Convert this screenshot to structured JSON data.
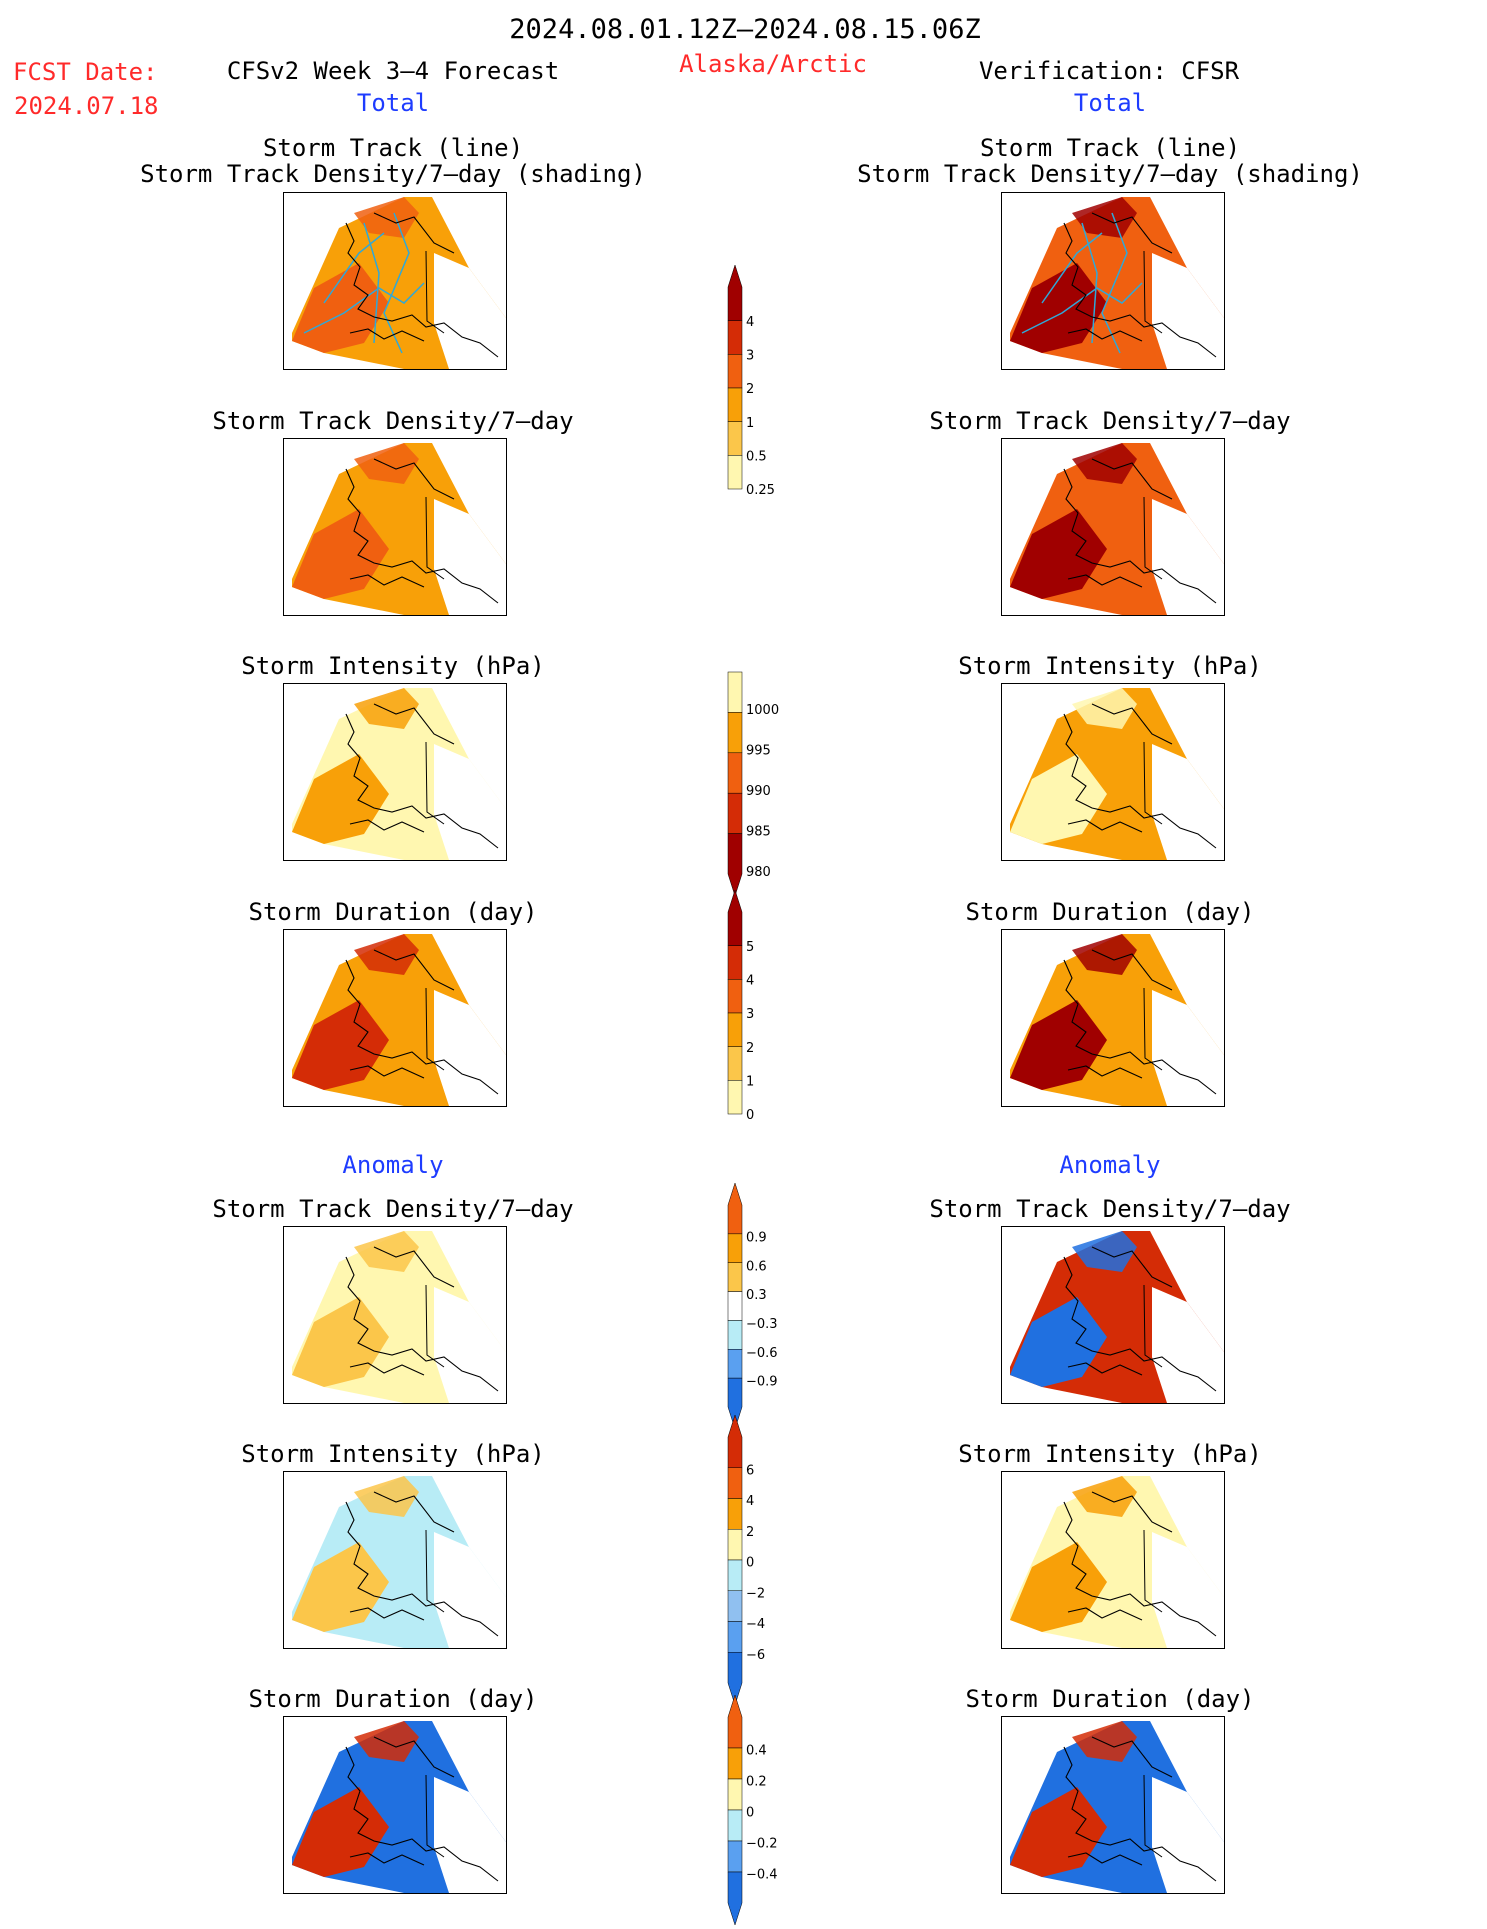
{
  "header": {
    "period": "2024.08.01.12Z–2024.08.15.06Z",
    "fcst_label": "FCST Date:",
    "fcst_date": "2024.07.18",
    "left_title": "CFSv2 Week 3–4 Forecast",
    "region": "Alaska/Arctic",
    "right_title": "Verification: CFSR",
    "total_left": "Total",
    "total_right": "Total",
    "anomaly_left": "Anomaly",
    "anomaly_right": "Anomaly"
  },
  "colors": {
    "darkred": "#a00000",
    "red": "#d42c06",
    "orangered": "#f06010",
    "orange": "#f8a008",
    "lightorange": "#fbc64a",
    "paleyellow": "#fff7b0",
    "lightblue": "#b8ecf6",
    "blue1": "#90c0f0",
    "blue2": "#5aa0f0",
    "blue3": "#2070e0",
    "track": "#2fa8d8"
  },
  "rows": [
    {
      "title_line1": "Storm Track (line)",
      "title_line2": "Storm Track Density/7–day (shading)",
      "left_fill": "#f8a008",
      "left_accent": "#f06010",
      "right_fill": "#f06010",
      "right_accent": "#a00000",
      "tracks": true
    },
    {
      "title_line1": "Storm Track Density/7–day",
      "title_line2": "",
      "left_fill": "#f8a008",
      "left_accent": "#f06010",
      "right_fill": "#f06010",
      "right_accent": "#a00000",
      "tracks": false
    },
    {
      "title_line1": "Storm Intensity (hPa)",
      "title_line2": "",
      "left_fill": "#fff7b0",
      "left_accent": "#f8a008",
      "right_fill": "#f8a008",
      "right_accent": "#fff7b0",
      "tracks": false
    },
    {
      "title_line1": "Storm Duration (day)",
      "title_line2": "",
      "left_fill": "#f8a008",
      "left_accent": "#d42c06",
      "right_fill": "#f8a008",
      "right_accent": "#a00000",
      "tracks": false
    },
    {
      "title_line1": "Storm Track Density/7–day",
      "title_line2": "",
      "left_fill": "#fff7b0",
      "left_accent": "#fbc64a",
      "right_fill": "#d42c06",
      "right_accent": "#2070e0",
      "tracks": false
    },
    {
      "title_line1": "Storm Intensity (hPa)",
      "title_line2": "",
      "left_fill": "#b8ecf6",
      "left_accent": "#fbc64a",
      "right_fill": "#fff7b0",
      "right_accent": "#f8a008",
      "tracks": false
    },
    {
      "title_line1": "Storm Duration (day)",
      "title_line2": "",
      "left_fill": "#2070e0",
      "left_accent": "#d42c06",
      "right_fill": "#2070e0",
      "right_accent": "#d42c06",
      "tracks": false
    }
  ],
  "chart_data": {
    "type": "heatmap",
    "colorbars": [
      {
        "ticks": [
          "4",
          "3",
          "2",
          "1",
          "0.5",
          "0.25"
        ],
        "colors": [
          "#a00000",
          "#d42c06",
          "#f06010",
          "#f8a008",
          "#fbc64a",
          "#fff7b0"
        ],
        "triangle": "top"
      },
      {
        "ticks": [
          "1000",
          "995",
          "990",
          "985",
          "980"
        ],
        "colors": [
          "#fff7b0",
          "#f8a008",
          "#f06010",
          "#d42c06",
          "#a00000"
        ],
        "triangle": "bottom"
      },
      {
        "ticks": [
          "5",
          "4",
          "3",
          "2",
          "1",
          "0"
        ],
        "colors": [
          "#a00000",
          "#d42c06",
          "#f06010",
          "#f8a008",
          "#fbc64a",
          "#fff7b0"
        ],
        "triangle": "top"
      },
      {
        "ticks": [
          "0.9",
          "0.6",
          "0.3",
          "−0.3",
          "−0.6",
          "−0.9"
        ],
        "colors": [
          "#f06010",
          "#f8a008",
          "#fbc64a",
          "#ffffff",
          "#b8ecf6",
          "#5aa0f0",
          "#2070e0"
        ],
        "triangle": "both"
      },
      {
        "ticks": [
          "6",
          "4",
          "2",
          "0",
          "−2",
          "−4",
          "−6"
        ],
        "colors": [
          "#d42c06",
          "#f06010",
          "#f8a008",
          "#fff7b0",
          "#b8ecf6",
          "#90c0f0",
          "#5aa0f0",
          "#2070e0"
        ],
        "triangle": "both"
      },
      {
        "ticks": [
          "0.4",
          "0.2",
          "0",
          "−0.2",
          "−0.4"
        ],
        "colors": [
          "#f06010",
          "#f8a008",
          "#fff7b0",
          "#b8ecf6",
          "#5aa0f0",
          "#2070e0"
        ],
        "triangle": "both"
      }
    ]
  }
}
